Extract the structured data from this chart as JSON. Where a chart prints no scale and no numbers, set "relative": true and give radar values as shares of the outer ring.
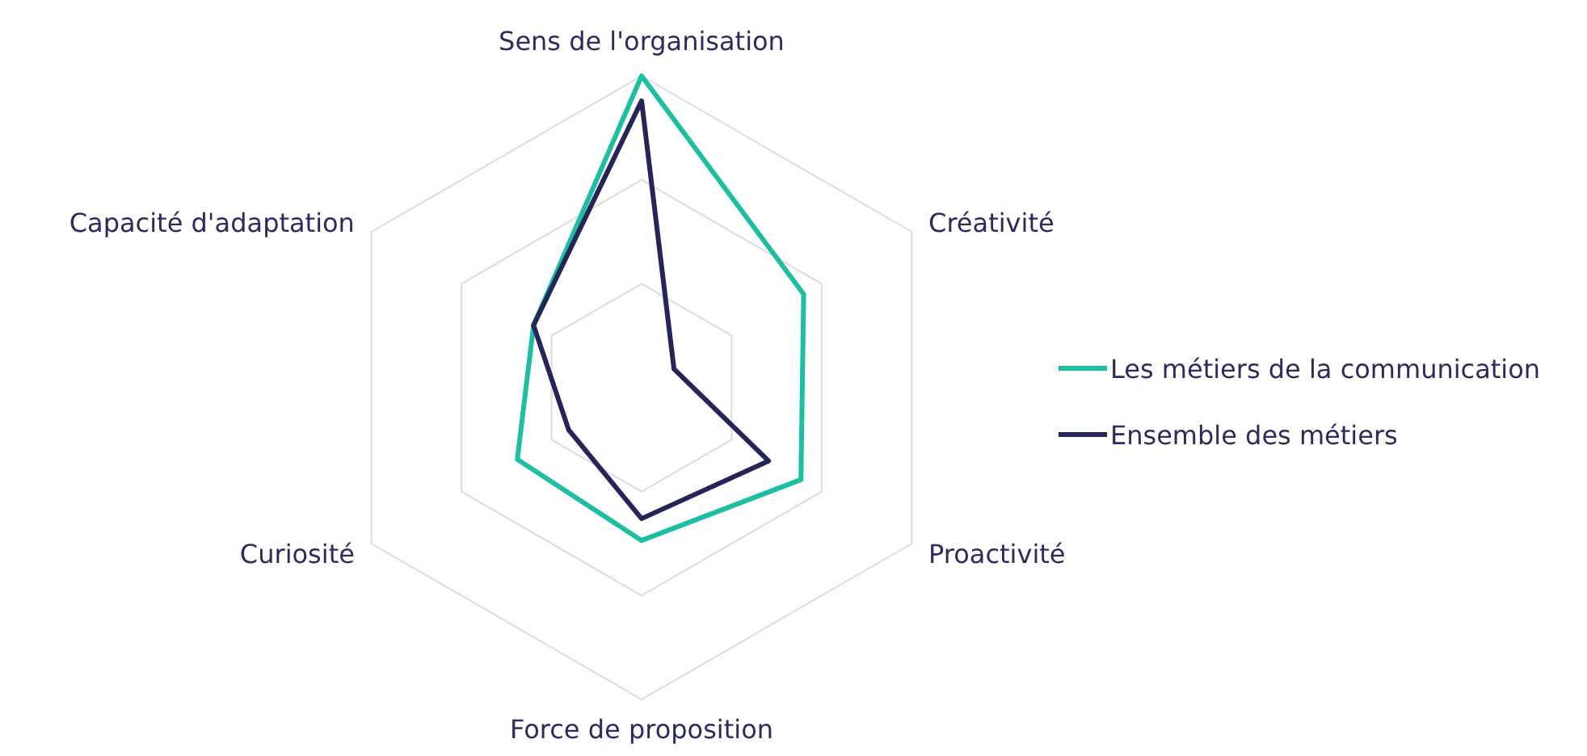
{
  "chart_data": {
    "type": "radar",
    "relative": true,
    "grid": true,
    "legend": "right",
    "line_style": "solid",
    "marker": "none",
    "categories": [
      "Sens de l'organisation",
      "Créativité",
      "Proactivité",
      "Force de proposition",
      "Curiosité",
      "Capacité d'adaptation"
    ],
    "series": [
      {
        "name": "Les métiers de la communication",
        "color": "#1dbfa3",
        "values": [
          1,
          0.6,
          0.59,
          0.49,
          0.46,
          0.4
        ]
      },
      {
        "name": "Ensemble des métiers",
        "color": "#26255a",
        "values": [
          0.92,
          0.12,
          0.47,
          0.42,
          0.27,
          0.4
        ]
      }
    ]
  }
}
